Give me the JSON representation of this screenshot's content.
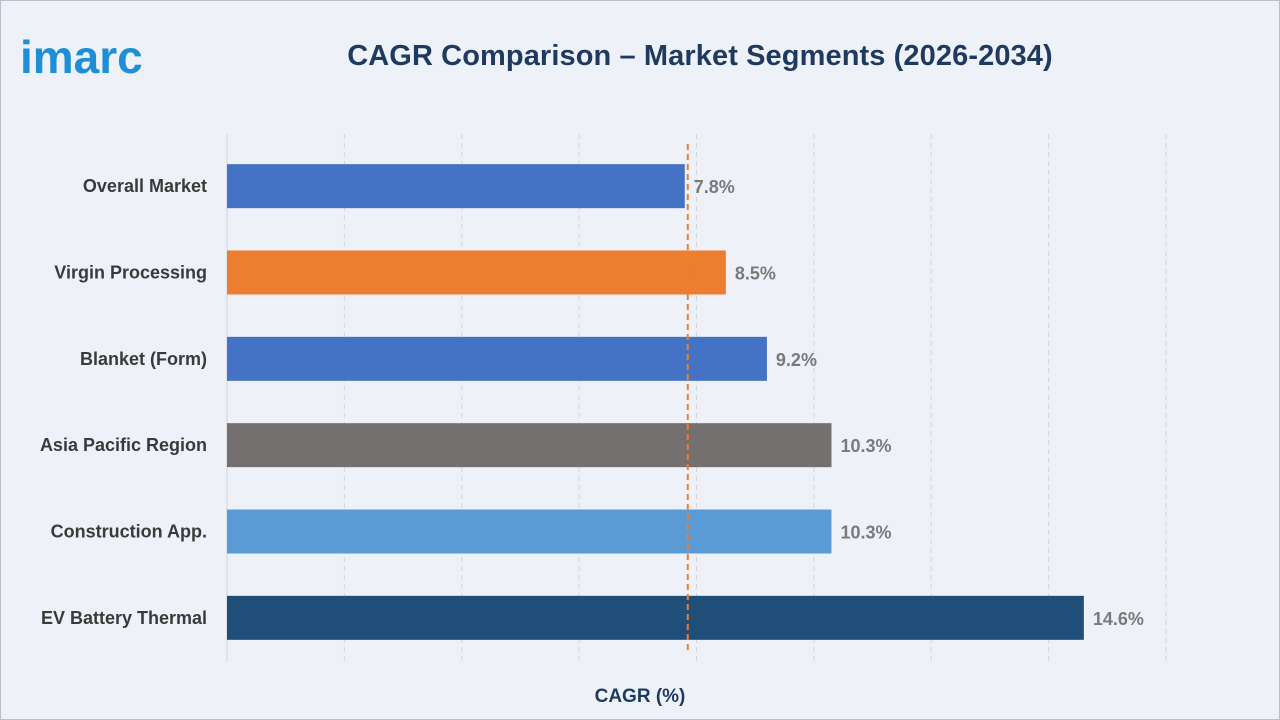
{
  "brand": {
    "logo_text": "imarc",
    "logo_color": "#1e8fd6"
  },
  "chart_data": {
    "type": "bar",
    "orientation": "horizontal",
    "title": "CAGR Comparison – Market Segments (2026-2034)",
    "xlabel": "CAGR (%)",
    "ylabel": "",
    "categories": [
      "Overall Market",
      "Virgin Processing",
      "Blanket (Form)",
      "Asia Pacific Region",
      "Construction App.",
      "EV Battery Thermal"
    ],
    "values": [
      7.8,
      8.5,
      9.2,
      10.3,
      10.3,
      14.6
    ],
    "value_labels": [
      "7.8%",
      "8.5%",
      "9.2%",
      "10.3%",
      "10.3%",
      "14.6%"
    ],
    "bar_colors": [
      "#4472c4",
      "#ed7d31",
      "#4472c4",
      "#747070",
      "#5b9bd5",
      "#1f4e79"
    ],
    "xlim": [
      0,
      16
    ],
    "reference_line": {
      "value": 7.8,
      "color": "#ed7d31",
      "style": "dashed"
    },
    "grid": true,
    "legend": "none"
  }
}
